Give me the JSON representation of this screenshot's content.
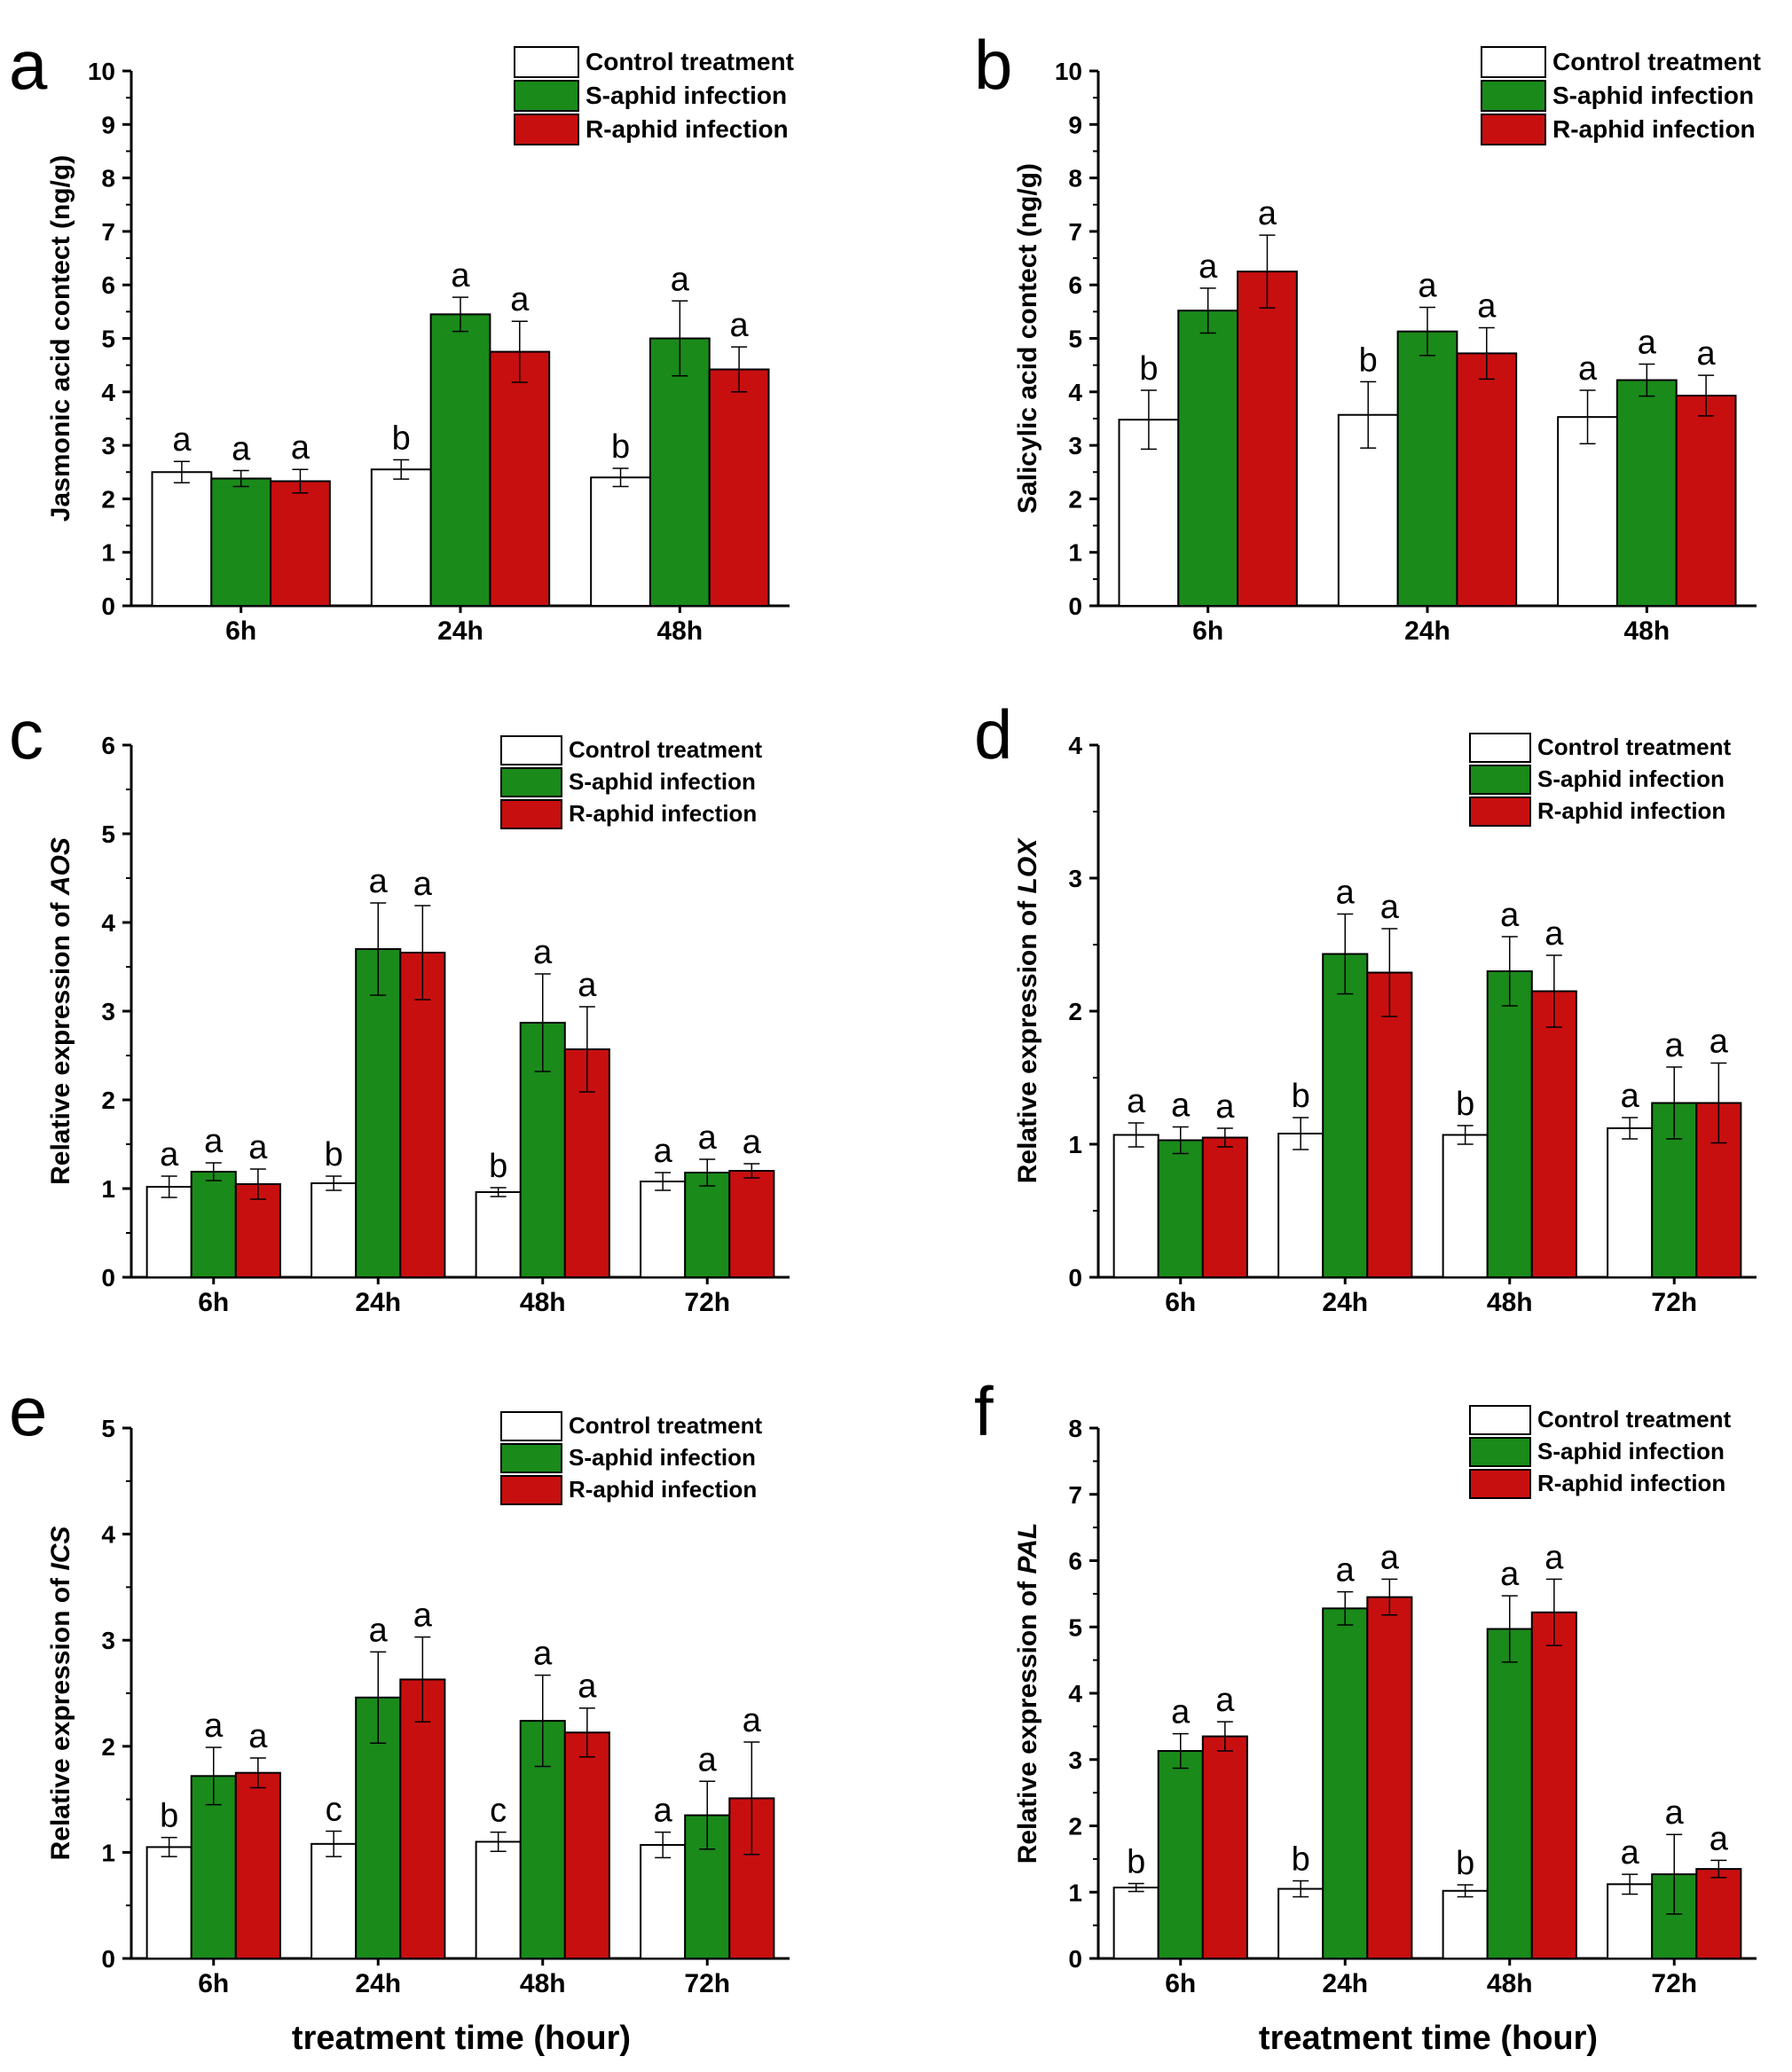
{
  "figure": {
    "shared_xlabel_left": "treatment time (hour)",
    "shared_xlabel_right": "treatment time (hour)"
  },
  "legend": {
    "entries": [
      "Control treatment",
      "S-aphid infection",
      "R-aphid infection"
    ]
  },
  "colors": {
    "control": "#ffffff",
    "s_aphid": "#1a8a1a",
    "r_aphid": "#c80f0f",
    "axis": "#000000"
  },
  "chart_data": [
    {
      "panel": "a",
      "type": "bar",
      "ylabel": "Jasmonic acid contect (ng/g)",
      "ylabel_italic_part": "",
      "ylim": [
        0,
        10
      ],
      "yticks": [
        0,
        1,
        2,
        3,
        4,
        5,
        6,
        7,
        8,
        9,
        10
      ],
      "categories": [
        "6h",
        "24h",
        "48h"
      ],
      "series": [
        {
          "name": "Control treatment",
          "values": [
            2.5,
            2.55,
            2.4
          ],
          "errors": [
            0.2,
            0.18,
            0.17
          ],
          "letters": [
            "a",
            "b",
            "b"
          ]
        },
        {
          "name": "S-aphid infection",
          "values": [
            2.38,
            5.45,
            5.0
          ],
          "errors": [
            0.15,
            0.32,
            0.7
          ],
          "letters": [
            "a",
            "a",
            "a"
          ]
        },
        {
          "name": "R-aphid infection",
          "values": [
            2.33,
            4.75,
            4.42
          ],
          "errors": [
            0.22,
            0.57,
            0.42
          ],
          "letters": [
            "a",
            "a",
            "a"
          ]
        }
      ]
    },
    {
      "panel": "b",
      "type": "bar",
      "ylabel": "Salicylic acid contect (ng/g)",
      "ylabel_italic_part": "",
      "ylim": [
        0,
        10
      ],
      "yticks": [
        0,
        1,
        2,
        3,
        4,
        5,
        6,
        7,
        8,
        9,
        10
      ],
      "categories": [
        "6h",
        "24h",
        "48h"
      ],
      "series": [
        {
          "name": "Control treatment",
          "values": [
            3.48,
            3.57,
            3.53
          ],
          "errors": [
            0.55,
            0.62,
            0.5
          ],
          "letters": [
            "b",
            "b",
            "a"
          ]
        },
        {
          "name": "S-aphid infection",
          "values": [
            5.52,
            5.13,
            4.22
          ],
          "errors": [
            0.42,
            0.45,
            0.3
          ],
          "letters": [
            "a",
            "a",
            "a"
          ]
        },
        {
          "name": "R-aphid infection",
          "values": [
            6.25,
            4.72,
            3.93
          ],
          "errors": [
            0.68,
            0.48,
            0.38
          ],
          "letters": [
            "a",
            "a",
            "a"
          ]
        }
      ]
    },
    {
      "panel": "c",
      "type": "bar",
      "ylabel": "Relative expression of ",
      "ylabel_italic_part": "AOS",
      "ylim": [
        0,
        6
      ],
      "yticks": [
        0,
        1,
        2,
        3,
        4,
        5,
        6
      ],
      "categories": [
        "6h",
        "24h",
        "48h",
        "72h"
      ],
      "series": [
        {
          "name": "Control treatment",
          "values": [
            1.02,
            1.06,
            0.96,
            1.08
          ],
          "errors": [
            0.12,
            0.08,
            0.05,
            0.1
          ],
          "letters": [
            "a",
            "b",
            "b",
            "a"
          ]
        },
        {
          "name": "S-aphid infection",
          "values": [
            1.19,
            3.7,
            2.87,
            1.18
          ],
          "errors": [
            0.1,
            0.52,
            0.55,
            0.15
          ],
          "letters": [
            "a",
            "a",
            "a",
            "a"
          ]
        },
        {
          "name": "R-aphid infection",
          "values": [
            1.05,
            3.66,
            2.57,
            1.2
          ],
          "errors": [
            0.17,
            0.53,
            0.48,
            0.08
          ],
          "letters": [
            "a",
            "a",
            "a",
            "a"
          ]
        }
      ]
    },
    {
      "panel": "d",
      "type": "bar",
      "ylabel": "Relative expression of ",
      "ylabel_italic_part": "LOX",
      "ylim": [
        0,
        4
      ],
      "yticks": [
        0,
        1,
        2,
        3,
        4
      ],
      "categories": [
        "6h",
        "24h",
        "48h",
        "72h"
      ],
      "series": [
        {
          "name": "Control treatment",
          "values": [
            1.07,
            1.08,
            1.07,
            1.12
          ],
          "errors": [
            0.09,
            0.12,
            0.07,
            0.08
          ],
          "letters": [
            "a",
            "b",
            "b",
            "a"
          ]
        },
        {
          "name": "S-aphid infection",
          "values": [
            1.03,
            2.43,
            2.3,
            1.31
          ],
          "errors": [
            0.1,
            0.3,
            0.26,
            0.27
          ],
          "letters": [
            "a",
            "a",
            "a",
            "a"
          ]
        },
        {
          "name": "R-aphid infection",
          "values": [
            1.05,
            2.29,
            2.15,
            1.31
          ],
          "errors": [
            0.07,
            0.33,
            0.27,
            0.3
          ],
          "letters": [
            "a",
            "a",
            "a",
            "a"
          ]
        }
      ]
    },
    {
      "panel": "e",
      "type": "bar",
      "ylabel": "Relative expression of ",
      "ylabel_italic_part": "ICS",
      "ylim": [
        0,
        5
      ],
      "yticks": [
        0,
        1,
        2,
        3,
        4,
        5
      ],
      "categories": [
        "6h",
        "24h",
        "48h",
        "72h"
      ],
      "series": [
        {
          "name": "Control treatment",
          "values": [
            1.05,
            1.08,
            1.1,
            1.07
          ],
          "errors": [
            0.09,
            0.12,
            0.09,
            0.12
          ],
          "letters": [
            "b",
            "c",
            "c",
            "a"
          ]
        },
        {
          "name": "S-aphid infection",
          "values": [
            1.72,
            2.46,
            2.24,
            1.35
          ],
          "errors": [
            0.27,
            0.43,
            0.43,
            0.32
          ],
          "letters": [
            "a",
            "a",
            "a",
            "a"
          ]
        },
        {
          "name": "R-aphid infection",
          "values": [
            1.75,
            2.63,
            2.13,
            1.51
          ],
          "errors": [
            0.14,
            0.4,
            0.23,
            0.53
          ],
          "letters": [
            "a",
            "a",
            "a",
            "a"
          ]
        }
      ]
    },
    {
      "panel": "f",
      "type": "bar",
      "ylabel": "Relative expression of ",
      "ylabel_italic_part": "PAL",
      "ylim": [
        0,
        8
      ],
      "yticks": [
        0,
        1,
        2,
        3,
        4,
        5,
        6,
        7,
        8
      ],
      "categories": [
        "6h",
        "24h",
        "48h",
        "72h"
      ],
      "series": [
        {
          "name": "Control treatment",
          "values": [
            1.07,
            1.05,
            1.02,
            1.12
          ],
          "errors": [
            0.06,
            0.12,
            0.09,
            0.15
          ],
          "letters": [
            "b",
            "b",
            "b",
            "a"
          ]
        },
        {
          "name": "S-aphid infection",
          "values": [
            3.13,
            5.28,
            4.97,
            1.27
          ],
          "errors": [
            0.26,
            0.25,
            0.5,
            0.6
          ],
          "letters": [
            "a",
            "a",
            "a",
            "a"
          ]
        },
        {
          "name": "R-aphid infection",
          "values": [
            3.35,
            5.45,
            5.22,
            1.35
          ],
          "errors": [
            0.22,
            0.27,
            0.5,
            0.13
          ],
          "letters": [
            "a",
            "a",
            "a",
            "a"
          ]
        }
      ]
    }
  ]
}
